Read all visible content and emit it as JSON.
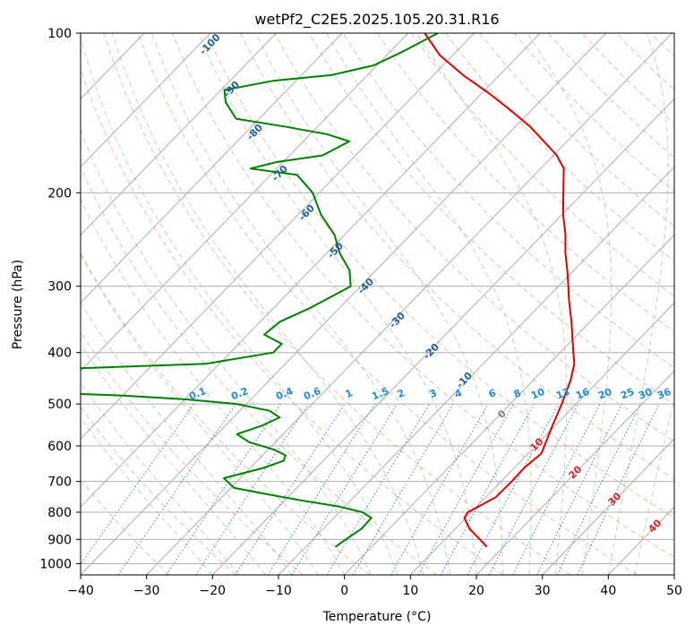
{
  "chart_data": {
    "type": "line",
    "title": "wetPf2_C2E5.2025.105.20.31.R16",
    "xlabel": "Temperature (°C)",
    "ylabel": "Pressure (hPa)",
    "xlim": [
      -40,
      50
    ],
    "ylim": [
      1050,
      100
    ],
    "y_scale": "log",
    "skew": true,
    "grid": true,
    "x_ticks": [
      -40,
      -30,
      -20,
      -10,
      0,
      10,
      20,
      30,
      40,
      50
    ],
    "y_ticks": [
      100,
      200,
      300,
      400,
      500,
      600,
      700,
      800,
      900,
      1000
    ],
    "series": [
      {
        "color": "#e00000",
        "points": [
          {
            "p": 930,
            "t": 17.5
          },
          {
            "p": 900,
            "t": 15.3
          },
          {
            "p": 860,
            "t": 12.2
          },
          {
            "p": 820,
            "t": 9.8
          },
          {
            "p": 800,
            "t": 9.5
          },
          {
            "p": 780,
            "t": 10.3
          },
          {
            "p": 750,
            "t": 11.5
          },
          {
            "p": 700,
            "t": 11.6
          },
          {
            "p": 660,
            "t": 11.5
          },
          {
            "p": 620,
            "t": 12.0
          },
          {
            "p": 590,
            "t": 11.0
          },
          {
            "p": 550,
            "t": 9.6
          },
          {
            "p": 500,
            "t": 7.8
          },
          {
            "p": 450,
            "t": 5.6
          },
          {
            "p": 420,
            "t": 3.8
          },
          {
            "p": 400,
            "t": 2.0
          },
          {
            "p": 350,
            "t": -2.8
          },
          {
            "p": 320,
            "t": -6.2
          },
          {
            "p": 300,
            "t": -8.5
          },
          {
            "p": 280,
            "t": -11.0
          },
          {
            "p": 260,
            "t": -13.8
          },
          {
            "p": 240,
            "t": -16.5
          },
          {
            "p": 220,
            "t": -19.8
          },
          {
            "p": 200,
            "t": -23.0
          },
          {
            "p": 180,
            "t": -26.5
          },
          {
            "p": 170,
            "t": -29.5
          },
          {
            "p": 160,
            "t": -33.5
          },
          {
            "p": 150,
            "t": -37.8
          },
          {
            "p": 140,
            "t": -43.0
          },
          {
            "p": 130,
            "t": -48.8
          },
          {
            "p": 120,
            "t": -55.5
          },
          {
            "p": 110,
            "t": -62.0
          },
          {
            "p": 100,
            "t": -67.5
          }
        ]
      },
      {
        "color": "#008000",
        "points": [
          {
            "p": 930,
            "t": -5.5
          },
          {
            "p": 900,
            "t": -5.0
          },
          {
            "p": 860,
            "t": -4.2
          },
          {
            "p": 820,
            "t": -4.3
          },
          {
            "p": 800,
            "t": -6.5
          },
          {
            "p": 780,
            "t": -11.0
          },
          {
            "p": 760,
            "t": -17.5
          },
          {
            "p": 740,
            "t": -23.5
          },
          {
            "p": 720,
            "t": -29.5
          },
          {
            "p": 690,
            "t": -32.5
          },
          {
            "p": 660,
            "t": -28.0
          },
          {
            "p": 640,
            "t": -26.0
          },
          {
            "p": 625,
            "t": -26.5
          },
          {
            "p": 610,
            "t": -29.0
          },
          {
            "p": 590,
            "t": -34.0
          },
          {
            "p": 570,
            "t": -37.0
          },
          {
            "p": 550,
            "t": -34.5
          },
          {
            "p": 530,
            "t": -33.0
          },
          {
            "p": 515,
            "t": -35.5
          },
          {
            "p": 500,
            "t": -41.5
          },
          {
            "p": 490,
            "t": -50.0
          },
          {
            "p": 482,
            "t": -60.0
          },
          {
            "p": 470,
            "t": -85.0
          }
        ]
      },
      {
        "color": "#008000",
        "points": [
          {
            "p": 430,
            "t": -95.0
          },
          {
            "p": 428,
            "t": -70.0
          },
          {
            "p": 420,
            "t": -52.0
          },
          {
            "p": 400,
            "t": -43.5
          },
          {
            "p": 385,
            "t": -43.5
          },
          {
            "p": 370,
            "t": -47.5
          },
          {
            "p": 350,
            "t": -47.0
          },
          {
            "p": 330,
            "t": -44.5
          },
          {
            "p": 300,
            "t": -41.5
          },
          {
            "p": 280,
            "t": -44.0
          },
          {
            "p": 260,
            "t": -48.0
          },
          {
            "p": 240,
            "t": -51.5
          },
          {
            "p": 220,
            "t": -56.5
          },
          {
            "p": 200,
            "t": -61.0
          },
          {
            "p": 185,
            "t": -66.0
          },
          {
            "p": 180,
            "t": -74.0
          },
          {
            "p": 175,
            "t": -71.0
          },
          {
            "p": 170,
            "t": -65.0
          },
          {
            "p": 160,
            "t": -63.0
          },
          {
            "p": 155,
            "t": -67.5
          },
          {
            "p": 150,
            "t": -75.0
          },
          {
            "p": 145,
            "t": -83.5
          },
          {
            "p": 135,
            "t": -87.5
          },
          {
            "p": 128,
            "t": -89.5
          },
          {
            "p": 123,
            "t": -83.5
          },
          {
            "p": 120,
            "t": -75.5
          },
          {
            "p": 115,
            "t": -70.5
          },
          {
            "p": 108,
            "t": -68.0
          },
          {
            "p": 100,
            "t": -65.5
          }
        ]
      }
    ],
    "isotherm_labels": [
      "-100",
      "-90",
      "-80",
      "-70",
      "-60",
      "-50",
      "-40",
      "-30",
      "-20",
      "-10"
    ],
    "mixing_ratio_labels": [
      "0.1",
      "0.2",
      "0.4",
      "0.6",
      "1",
      "1.5",
      "2",
      "3",
      "4",
      "6",
      "8",
      "10",
      "13",
      "16",
      "20",
      "25",
      "30",
      "36"
    ],
    "isotherm_warm_labels": [
      "0",
      "10",
      "20",
      "30",
      "40"
    ]
  }
}
